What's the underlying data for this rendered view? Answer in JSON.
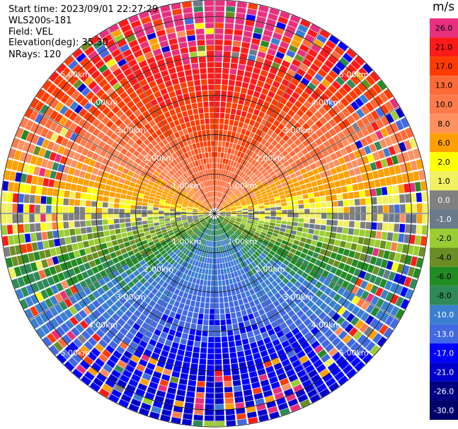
{
  "header": {
    "start_time": "Start time: 2023/09/01 22:27:29",
    "instrument": "WLS200s-181",
    "field": "Field: VEL",
    "elevation": "Elevation(deg): 35.30",
    "nrays": "NRays: 120"
  },
  "colorbar": {
    "unit": "m/s",
    "levels": [
      {
        "label": "26.0",
        "color": "#e8307e"
      },
      {
        "label": "21.0",
        "color": "#ff1a1a"
      },
      {
        "label": "17.0",
        "color": "#ff3c00"
      },
      {
        "label": "13.0",
        "color": "#ff6a38"
      },
      {
        "label": "10.0",
        "color": "#ff7b4c"
      },
      {
        "label": "8.0",
        "color": "#ff9060"
      },
      {
        "label": "6.0",
        "color": "#ffa000"
      },
      {
        "label": "2.0",
        "color": "#ffff00"
      },
      {
        "label": "1.0",
        "color": "#f0f060"
      },
      {
        "label": "0.0",
        "color": "#808080"
      },
      {
        "label": "-1.0",
        "color": "#6a7a8a"
      },
      {
        "label": "-2.0",
        "color": "#9acd32"
      },
      {
        "label": "-4.0",
        "color": "#6b8e23"
      },
      {
        "label": "-6.0",
        "color": "#228b22"
      },
      {
        "label": "-8.0",
        "color": "#2e8b57"
      },
      {
        "label": "-10.0",
        "color": "#3a7fd0"
      },
      {
        "label": "-13.0",
        "color": "#4169e1"
      },
      {
        "label": "-17.0",
        "color": "#0000ff"
      },
      {
        "label": "-21.0",
        "color": "#0000cd"
      },
      {
        "label": "-26.0",
        "color": "#000080"
      },
      {
        "label": "-30.0",
        "color": "#00006a"
      }
    ]
  },
  "chart_data": {
    "type": "heatmap",
    "projection": "polar",
    "field": "VEL",
    "nrays": 120,
    "range_rings_km": [
      1,
      2,
      3,
      4,
      5
    ],
    "ring_labels": [
      "1.00km",
      "2.00km",
      "3.00km",
      "4.00km",
      "5.00km"
    ],
    "max_range_km": 5.7,
    "value_pattern": "positive velocities (orange/red) toward the upper half, negative velocities (green/blue) toward the lower half, near zero (grey/yellow) along the horizontal axis"
  }
}
